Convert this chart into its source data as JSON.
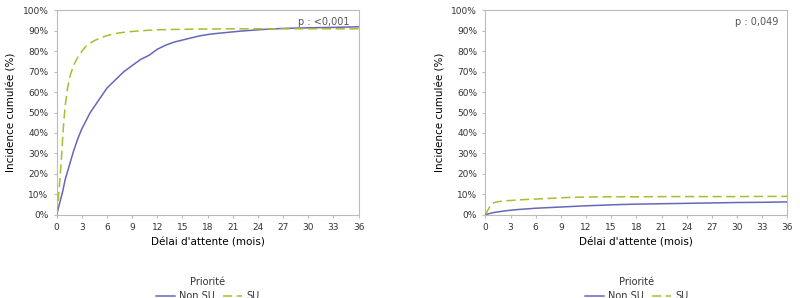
{
  "plot1": {
    "p_label": "p : <0,001",
    "nonsu_x": [
      0,
      0.25,
      0.5,
      0.75,
      1,
      1.5,
      2,
      2.5,
      3,
      4,
      5,
      6,
      7,
      8,
      9,
      10,
      11,
      12,
      13,
      14,
      15,
      16,
      17,
      18,
      19,
      20,
      21,
      22,
      23,
      24,
      25,
      26,
      27,
      28,
      30,
      33,
      36
    ],
    "nonsu_y": [
      0,
      0.04,
      0.08,
      0.12,
      0.17,
      0.24,
      0.31,
      0.37,
      0.42,
      0.5,
      0.56,
      0.62,
      0.66,
      0.7,
      0.73,
      0.76,
      0.78,
      0.81,
      0.83,
      0.845,
      0.855,
      0.865,
      0.875,
      0.882,
      0.887,
      0.891,
      0.895,
      0.899,
      0.902,
      0.905,
      0.908,
      0.91,
      0.912,
      0.913,
      0.915,
      0.917,
      0.92
    ],
    "su_x": [
      0,
      0.2,
      0.4,
      0.6,
      0.8,
      1,
      1.3,
      1.6,
      2,
      2.5,
      3,
      3.5,
      4,
      4.5,
      5,
      5.5,
      6,
      7,
      8,
      9,
      10,
      11,
      12,
      14,
      16,
      18,
      21,
      24,
      27,
      30,
      33,
      36
    ],
    "su_y": [
      0,
      0.08,
      0.18,
      0.3,
      0.43,
      0.53,
      0.62,
      0.68,
      0.73,
      0.77,
      0.8,
      0.825,
      0.84,
      0.852,
      0.862,
      0.87,
      0.877,
      0.887,
      0.893,
      0.897,
      0.9,
      0.903,
      0.905,
      0.907,
      0.908,
      0.909,
      0.91,
      0.91,
      0.91,
      0.91,
      0.91,
      0.91
    ],
    "yticks": [
      0,
      0.1,
      0.2,
      0.3,
      0.4,
      0.5,
      0.6,
      0.7,
      0.8,
      0.9,
      1.0
    ],
    "xlabel": "Délai d'attente (mois)",
    "ylabel": "Incidence cumulée (%)"
  },
  "plot2": {
    "p_label": "p : 0,049",
    "nonsu_x": [
      0,
      0.3,
      0.6,
      1,
      1.5,
      2,
      2.5,
      3,
      4,
      5,
      6,
      7,
      8,
      9,
      10,
      11,
      12,
      14,
      16,
      18,
      21,
      24,
      27,
      30,
      33,
      36
    ],
    "nonsu_y": [
      0,
      0.003,
      0.006,
      0.01,
      0.013,
      0.016,
      0.019,
      0.021,
      0.025,
      0.028,
      0.031,
      0.033,
      0.035,
      0.037,
      0.039,
      0.041,
      0.043,
      0.046,
      0.049,
      0.051,
      0.053,
      0.055,
      0.057,
      0.059,
      0.06,
      0.062
    ],
    "su_x": [
      0,
      0.2,
      0.4,
      0.6,
      0.8,
      1,
      1.5,
      2,
      2.5,
      3,
      4,
      5,
      6,
      7,
      8,
      9,
      10,
      11,
      12,
      15,
      18,
      21,
      24,
      27,
      30,
      33,
      36
    ],
    "su_y": [
      0,
      0.015,
      0.03,
      0.045,
      0.053,
      0.058,
      0.063,
      0.066,
      0.068,
      0.069,
      0.072,
      0.074,
      0.076,
      0.078,
      0.08,
      0.082,
      0.084,
      0.085,
      0.086,
      0.087,
      0.087,
      0.088,
      0.088,
      0.088,
      0.088,
      0.089,
      0.089
    ],
    "yticks": [
      0,
      0.1,
      0.2,
      0.3,
      0.4,
      0.5,
      0.6,
      0.7,
      0.8,
      0.9,
      1.0
    ],
    "xlabel": "Délai d'attente (mois)",
    "ylabel": "Incidence cumulée (%)"
  },
  "xticks": [
    0,
    3,
    6,
    9,
    12,
    15,
    18,
    21,
    24,
    27,
    30,
    33,
    36
  ],
  "xlim": [
    0,
    36
  ],
  "ylim": [
    0,
    1.0
  ],
  "color_nonsu": "#6666bb",
  "color_su": "#aabc30",
  "legend_label_priorite": "Priorité",
  "legend_label_nonsu": "Non SU",
  "legend_label_su": "SU",
  "bg_color": "#ffffff"
}
